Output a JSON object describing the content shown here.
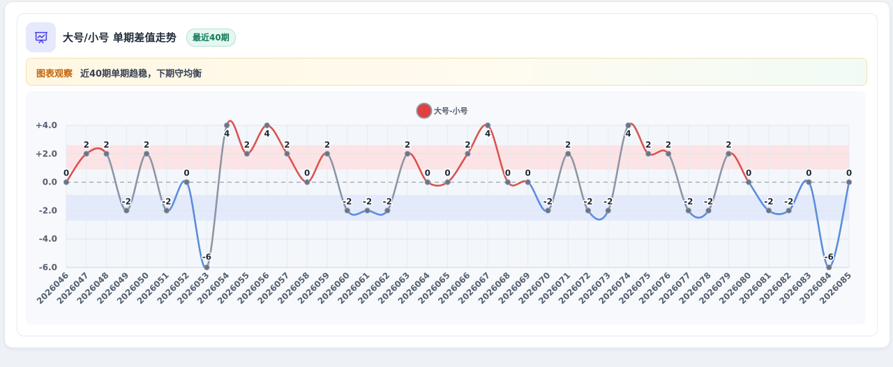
{
  "header": {
    "icon": "presentation-chart-icon",
    "title": "大号/小号 单期差值走势",
    "badge": "最近40期"
  },
  "insight": {
    "tag": "图表观察",
    "text": "近40期单期趋稳，下期守均衡"
  },
  "colors": {
    "positive": "#d9534f",
    "negative": "#5b8ddb",
    "neutral": "#8c96a5",
    "accent": "#5b5bd6"
  },
  "chart_data": {
    "type": "line",
    "smooth": true,
    "legend": {
      "position": "top-center",
      "label": "大号-小号",
      "color": "#e0403f"
    },
    "categories": [
      "2026046",
      "2026047",
      "2026048",
      "2026049",
      "2026050",
      "2026051",
      "2026052",
      "2026053",
      "2026054",
      "2026055",
      "2026056",
      "2026057",
      "2026058",
      "2026059",
      "2026060",
      "2026061",
      "2026062",
      "2026063",
      "2026064",
      "2026065",
      "2026066",
      "2026067",
      "2026068",
      "2026069",
      "2026070",
      "2026071",
      "2026072",
      "2026073",
      "2026074",
      "2026075",
      "2026076",
      "2026077",
      "2026078",
      "2026079",
      "2026080",
      "2026081",
      "2026082",
      "2026083",
      "2026084",
      "2026085"
    ],
    "series": [
      {
        "name": "大号-小号",
        "values": [
          0,
          2,
          2,
          -2,
          2,
          -2,
          0,
          -6,
          4,
          2,
          4,
          2,
          0,
          2,
          -2,
          -2,
          -2,
          2,
          0,
          0,
          2,
          4,
          0,
          0,
          -2,
          2,
          -2,
          -2,
          4,
          2,
          2,
          -2,
          -2,
          2,
          0,
          -2,
          -2,
          0,
          -6,
          0
        ]
      }
    ],
    "data_labels": [
      "0",
      "2",
      "2",
      "-2",
      "2",
      "-2",
      "0",
      "-6",
      "4",
      "2",
      "4",
      "2",
      "0",
      "2",
      "-2",
      "-2",
      "-2",
      "2",
      "0",
      "0",
      "2",
      "4",
      "0",
      "0",
      "-2",
      "2",
      "-2",
      "-2",
      "4",
      "2",
      "2",
      "-2",
      "-2",
      "2",
      "0",
      "-2",
      "-2",
      "0",
      "-6",
      "0"
    ],
    "ylim": [
      -6,
      4
    ],
    "yticks": [
      4,
      2,
      0,
      -2,
      -4,
      -6
    ],
    "ytick_labels": [
      "+4.0",
      "+2.0",
      "0.0",
      "-2.0",
      "-4.0",
      "-6.0"
    ],
    "bands": [
      {
        "from": 0.9,
        "to": 2.6,
        "color": "#fbdfe2"
      },
      {
        "from": -2.7,
        "to": -0.9,
        "color": "#dfe8fb"
      }
    ],
    "zero_line": true,
    "grid": true
  }
}
